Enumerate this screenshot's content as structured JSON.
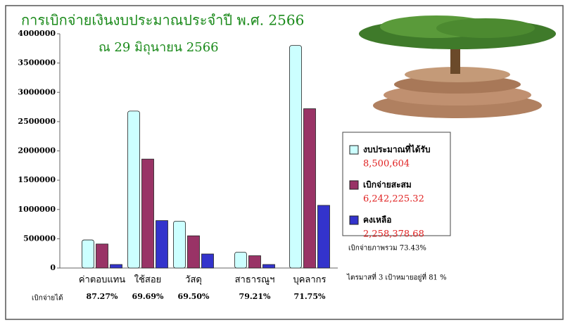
{
  "chart_data": {
    "type": "bar",
    "title": "การเบิกจ่ายเงินงบประมาณประจำปี พ.ศ. 2566",
    "subtitle": "ณ 29 มิถุนายน 2566",
    "categories": [
      "ค่าตอบแทน",
      "ใช้สอย",
      "วัสดุ",
      "สาธารณูฯ",
      "บุคลากร"
    ],
    "series": [
      {
        "name": "งบประมาณที่ได้รับ",
        "color": "#ccffff",
        "values": [
          480000,
          2680000,
          800000,
          270000,
          3800000
        ],
        "total_label": "8,500,604"
      },
      {
        "name": "เบิกจ่ายสะสม",
        "color": "#993366",
        "values": [
          410000,
          1860000,
          550000,
          210000,
          2720000
        ],
        "total_label": "6,242,225.32"
      },
      {
        "name": "คงเหลือ",
        "color": "#3333cc",
        "values": [
          60000,
          810000,
          240000,
          60000,
          1070000
        ],
        "total_label": "2,258,378.68"
      }
    ],
    "ylim": [
      0,
      4000000
    ],
    "yticks": [
      0,
      500000,
      1000000,
      1500000,
      2000000,
      2500000,
      3000000,
      3500000,
      4000000
    ],
    "row_label": "เบิกจ่ายได้",
    "percent_labels": [
      "87.27%",
      "69.69%",
      "69.50%",
      "79.21%",
      "71.75%"
    ],
    "annotations": [
      "เบิกจ่ายภาพรวม 73.43%",
      "ไตรมาสที่ 3 เป้าหมายอยู่ที่ 81 %"
    ],
    "legend": "right"
  }
}
